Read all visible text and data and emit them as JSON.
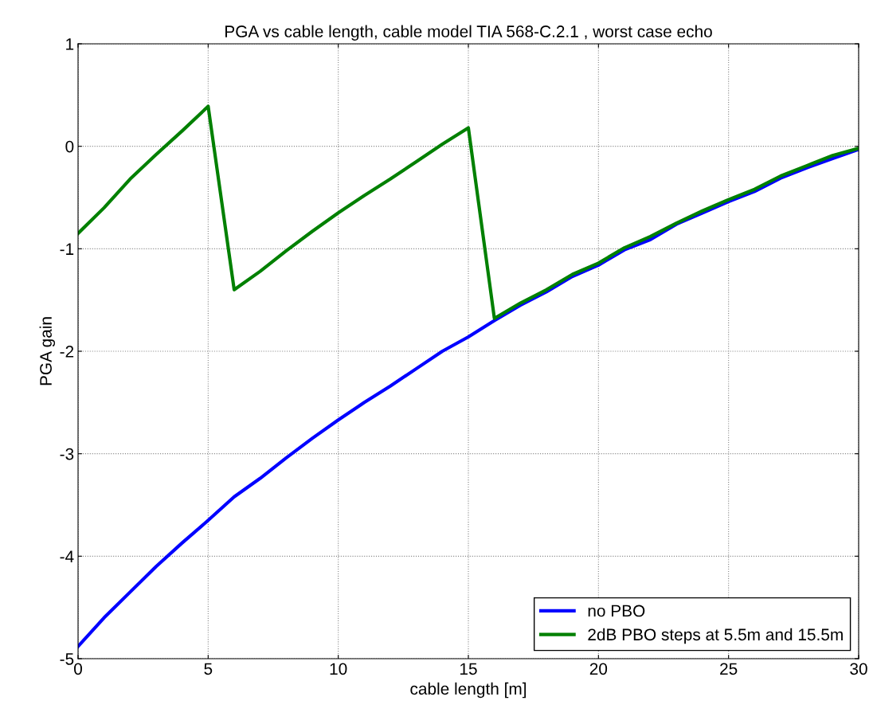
{
  "chart_data": {
    "type": "line",
    "title": "PGA vs cable length, cable model TIA 568-C.2.1 , worst case echo",
    "xlabel": "cable length [m]",
    "ylabel": "PGA gain",
    "x": [
      0,
      1,
      2,
      3,
      4,
      5,
      6,
      7,
      8,
      9,
      10,
      11,
      12,
      13,
      14,
      15,
      16,
      17,
      18,
      19,
      20,
      21,
      22,
      23,
      24,
      25,
      26,
      27,
      28,
      29,
      30
    ],
    "series": [
      {
        "name": "no PBO",
        "color": "#0000ff",
        "values": [
          -4.88,
          -4.6,
          -4.35,
          -4.1,
          -3.87,
          -3.65,
          -3.42,
          -3.24,
          -3.04,
          -2.85,
          -2.67,
          -2.5,
          -2.34,
          -2.17,
          -2.0,
          -1.86,
          -1.7,
          -1.55,
          -1.42,
          -1.27,
          -1.16,
          -1.01,
          -0.91,
          -0.76,
          -0.65,
          -0.54,
          -0.44,
          -0.31,
          -0.21,
          -0.12,
          -0.03
        ]
      },
      {
        "name": "2dB PBO steps at 5.5m and 15.5m",
        "color": "#008000",
        "values": [
          -0.85,
          -0.6,
          -0.32,
          -0.08,
          0.15,
          0.39,
          -1.4,
          -1.22,
          -1.02,
          -0.83,
          -0.65,
          -0.48,
          -0.32,
          -0.15,
          0.02,
          0.18,
          -1.68,
          -1.53,
          -1.4,
          -1.25,
          -1.14,
          -0.99,
          -0.88,
          -0.75,
          -0.63,
          -0.52,
          -0.42,
          -0.29,
          -0.19,
          -0.09,
          -0.02
        ]
      }
    ],
    "xlim": [
      0,
      30
    ],
    "ylim": [
      -5,
      1
    ],
    "xticks": [
      0,
      5,
      10,
      15,
      20,
      25,
      30
    ],
    "yticks": [
      -5,
      -4,
      -3,
      -2,
      -1,
      0,
      1
    ],
    "grid": true,
    "legend": "bottom right",
    "line_style": "solid",
    "marker": "none"
  }
}
